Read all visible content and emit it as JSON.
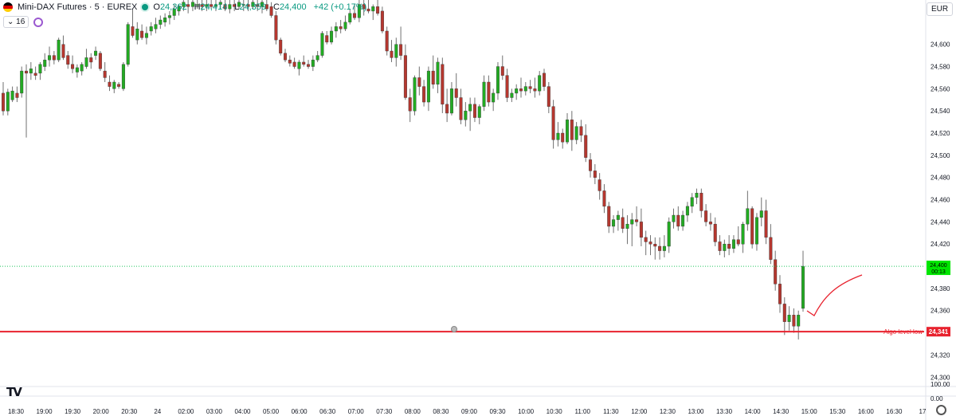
{
  "header": {
    "symbol": "Mini-DAX Futures · 5 · EUREX",
    "ohlc": [
      {
        "label": "O",
        "value": "24,362"
      },
      {
        "label": "H",
        "value": "24,414"
      },
      {
        "label": "L",
        "value": "24,359"
      },
      {
        "label": "C",
        "value": "24,400"
      }
    ],
    "change": "+42 (+0.17%)",
    "interval_label": "16",
    "currency": "EUR"
  },
  "colors": {
    "up": "#22ab22",
    "down": "#b5372f",
    "algo": "#e8222e",
    "price_tag": "#00e600"
  },
  "chart_data": {
    "type": "candlestick",
    "ylim": [
      24293,
      24640
    ],
    "y_ticks": [
      "24,600",
      "24,580",
      "24,560",
      "24,540",
      "24,520",
      "24,500",
      "24,480",
      "24,460",
      "24,440",
      "24,420",
      "24,380",
      "24,360",
      "24,320",
      "24,300"
    ],
    "x_ticks": [
      "18:30",
      "19:00",
      "19:30",
      "20:00",
      "20:30",
      "24",
      "02:00",
      "03:00",
      "04:00",
      "05:00",
      "06:00",
      "06:30",
      "07:00",
      "07:30",
      "08:00",
      "08:30",
      "09:00",
      "09:30",
      "10:00",
      "10:30",
      "11:00",
      "11:30",
      "12:00",
      "12:30",
      "13:00",
      "13:30",
      "14:00",
      "14:30",
      "15:00",
      "15:30",
      "16:00",
      "16:30",
      "17"
    ],
    "candles": [
      [
        24556,
        24566,
        24536,
        24540
      ],
      [
        24540,
        24560,
        24536,
        24557
      ],
      [
        24550,
        24562,
        24548,
        24558
      ],
      [
        24556,
        24562,
        24548,
        24552
      ],
      [
        24556,
        24580,
        24552,
        24576
      ],
      [
        24576,
        24582,
        24516,
        24574
      ],
      [
        24574,
        24584,
        24568,
        24578
      ],
      [
        24574,
        24580,
        24568,
        24572
      ],
      [
        24574,
        24584,
        24568,
        24582
      ],
      [
        24580,
        24592,
        24576,
        24586
      ],
      [
        24586,
        24598,
        24580,
        24590
      ],
      [
        24590,
        24594,
        24582,
        24586
      ],
      [
        24586,
        24606,
        24584,
        24604
      ],
      [
        24600,
        24608,
        24586,
        24588
      ],
      [
        24590,
        24594,
        24578,
        24582
      ],
      [
        24582,
        24590,
        24574,
        24578
      ],
      [
        24575,
        24582,
        24570,
        24579
      ],
      [
        24576,
        24584,
        24572,
        24582
      ],
      [
        24580,
        24596,
        24578,
        24588
      ],
      [
        24588,
        24592,
        24578,
        24584
      ],
      [
        24590,
        24598,
        24586,
        24594
      ],
      [
        24592,
        24594,
        24576,
        24578
      ],
      [
        24576,
        24584,
        24566,
        24570
      ],
      [
        24566,
        24572,
        24558,
        24562
      ],
      [
        24560,
        24568,
        24556,
        24566
      ],
      [
        24564,
        24566,
        24560,
        24562
      ],
      [
        24560,
        24584,
        24558,
        24582
      ],
      [
        24582,
        24620,
        24580,
        24618
      ],
      [
        24616,
        24632,
        24606,
        24608
      ],
      [
        24604,
        24620,
        24600,
        24614
      ],
      [
        24612,
        24618,
        24604,
        24606
      ],
      [
        24606,
        24616,
        24600,
        24610
      ],
      [
        24612,
        24620,
        24608,
        24616
      ],
      [
        24614,
        24624,
        24610,
        24618
      ],
      [
        24618,
        24626,
        24614,
        24622
      ],
      [
        24620,
        24628,
        24616,
        24624
      ],
      [
        24624,
        24630,
        24618,
        24626
      ],
      [
        24626,
        24636,
        24622,
        24632
      ],
      [
        24630,
        24636,
        24626,
        24634
      ],
      [
        24634,
        24640,
        24630,
        24638
      ],
      [
        24636,
        24640,
        24628,
        24634
      ],
      [
        24634,
        24640,
        24630,
        24638
      ],
      [
        24636,
        24640,
        24632,
        24636
      ],
      [
        24636,
        24640,
        24630,
        24634
      ],
      [
        24634,
        24640,
        24630,
        24636
      ],
      [
        24636,
        24640,
        24632,
        24634
      ],
      [
        24634,
        24640,
        24630,
        24636
      ],
      [
        24636,
        24640,
        24632,
        24638
      ],
      [
        24636,
        24640,
        24630,
        24632
      ],
      [
        24632,
        24640,
        24628,
        24636
      ],
      [
        24636,
        24640,
        24630,
        24634
      ],
      [
        24634,
        24640,
        24632,
        24638
      ],
      [
        24636,
        24640,
        24630,
        24636
      ],
      [
        24636,
        24640,
        24630,
        24634
      ],
      [
        24634,
        24640,
        24632,
        24638
      ],
      [
        24636,
        24640,
        24630,
        24634
      ],
      [
        24634,
        24640,
        24628,
        24638
      ],
      [
        24636,
        24640,
        24630,
        24632
      ],
      [
        24634,
        24638,
        24624,
        24626
      ],
      [
        24626,
        24630,
        24600,
        24604
      ],
      [
        24604,
        24606,
        24590,
        24592
      ],
      [
        24592,
        24596,
        24584,
        24586
      ],
      [
        24586,
        24590,
        24580,
        24583
      ],
      [
        24584,
        24588,
        24578,
        24580
      ],
      [
        24578,
        24586,
        24572,
        24584
      ],
      [
        24584,
        24590,
        24580,
        24582
      ],
      [
        24582,
        24586,
        24578,
        24580
      ],
      [
        24580,
        24590,
        24576,
        24586
      ],
      [
        24586,
        24594,
        24584,
        24590
      ],
      [
        24590,
        24612,
        24588,
        24610
      ],
      [
        24608,
        24612,
        24600,
        24602
      ],
      [
        24602,
        24616,
        24600,
        24612
      ],
      [
        24612,
        24620,
        24606,
        24616
      ],
      [
        24616,
        24622,
        24610,
        24614
      ],
      [
        24614,
        24626,
        24612,
        24620
      ],
      [
        24620,
        24632,
        24618,
        24628
      ],
      [
        24628,
        24636,
        24622,
        24624
      ],
      [
        24624,
        24640,
        24620,
        24636
      ],
      [
        24636,
        24640,
        24626,
        24632
      ],
      [
        24632,
        24640,
        24628,
        24630
      ],
      [
        24630,
        24636,
        24622,
        24634
      ],
      [
        24634,
        24640,
        24626,
        24628
      ],
      [
        24630,
        24634,
        24610,
        24612
      ],
      [
        24612,
        24616,
        24590,
        24594
      ],
      [
        24594,
        24604,
        24584,
        24588
      ],
      [
        24588,
        24606,
        24580,
        24600
      ],
      [
        24600,
        24616,
        24586,
        24590
      ],
      [
        24590,
        24600,
        24550,
        24552
      ],
      [
        24552,
        24560,
        24530,
        24540
      ],
      [
        24540,
        24572,
        24536,
        24570
      ],
      [
        24570,
        24580,
        24554,
        24562
      ],
      [
        24562,
        24568,
        24544,
        24548
      ],
      [
        24548,
        24580,
        24540,
        24576
      ],
      [
        24576,
        24590,
        24560,
        24564
      ],
      [
        24564,
        24588,
        24556,
        24584
      ],
      [
        24582,
        24588,
        24538,
        24546
      ],
      [
        24546,
        24560,
        24530,
        24538
      ],
      [
        24538,
        24566,
        24536,
        24560
      ],
      [
        24560,
        24574,
        24544,
        24552
      ],
      [
        24552,
        24560,
        24528,
        24532
      ],
      [
        24532,
        24548,
        24526,
        24540
      ],
      [
        24540,
        24552,
        24522,
        24546
      ],
      [
        24546,
        24552,
        24530,
        24534
      ],
      [
        24534,
        24546,
        24528,
        24544
      ],
      [
        24544,
        24572,
        24540,
        24566
      ],
      [
        24566,
        24572,
        24544,
        24548
      ],
      [
        24548,
        24560,
        24540,
        24556
      ],
      [
        24556,
        24584,
        24550,
        24580
      ],
      [
        24580,
        24590,
        24568,
        24572
      ],
      [
        24572,
        24578,
        24548,
        24552
      ],
      [
        24552,
        24560,
        24548,
        24556
      ],
      [
        24556,
        24564,
        24550,
        24560
      ],
      [
        24560,
        24570,
        24552,
        24558
      ],
      [
        24558,
        24566,
        24554,
        24562
      ],
      [
        24562,
        24568,
        24556,
        24560
      ],
      [
        24560,
        24570,
        24552,
        24558
      ],
      [
        24558,
        24576,
        24554,
        24572
      ],
      [
        24574,
        24578,
        24558,
        24562
      ],
      [
        24562,
        24566,
        24538,
        24544
      ],
      [
        24544,
        24550,
        24506,
        24514
      ],
      [
        24514,
        24530,
        24508,
        24520
      ],
      [
        24520,
        24524,
        24506,
        24512
      ],
      [
        24512,
        24538,
        24510,
        24532
      ],
      [
        24532,
        24540,
        24504,
        24514
      ],
      [
        24514,
        24530,
        24510,
        24526
      ],
      [
        24526,
        24532,
        24512,
        24518
      ],
      [
        24518,
        24528,
        24494,
        24498
      ],
      [
        24496,
        24502,
        24480,
        24486
      ],
      [
        24486,
        24492,
        24474,
        24480
      ],
      [
        24478,
        24484,
        24460,
        24468
      ],
      [
        24468,
        24474,
        24448,
        24454
      ],
      [
        24454,
        24458,
        24430,
        24436
      ],
      [
        24436,
        24446,
        24430,
        24442
      ],
      [
        24442,
        24450,
        24432,
        24446
      ],
      [
        24444,
        24452,
        24430,
        24434
      ],
      [
        24434,
        24446,
        24420,
        24438
      ],
      [
        24438,
        24448,
        24418,
        24442
      ],
      [
        24442,
        24454,
        24436,
        24440
      ],
      [
        24440,
        24452,
        24418,
        24426
      ],
      [
        24426,
        24432,
        24410,
        24422
      ],
      [
        24422,
        24428,
        24410,
        24420
      ],
      [
        24420,
        24426,
        24406,
        24418
      ],
      [
        24418,
        24426,
        24406,
        24414
      ],
      [
        24414,
        24428,
        24408,
        24418
      ],
      [
        24418,
        24444,
        24412,
        24440
      ],
      [
        24440,
        24452,
        24434,
        24446
      ],
      [
        24446,
        24454,
        24432,
        24436
      ],
      [
        24436,
        24450,
        24432,
        24446
      ],
      [
        24446,
        24458,
        24440,
        24454
      ],
      [
        24454,
        24466,
        24448,
        24462
      ],
      [
        24462,
        24470,
        24456,
        24466
      ],
      [
        24466,
        24470,
        24444,
        24450
      ],
      [
        24450,
        24456,
        24436,
        24440
      ],
      [
        24440,
        24448,
        24432,
        24438
      ],
      [
        24438,
        24444,
        24418,
        24422
      ],
      [
        24422,
        24428,
        24410,
        24414
      ],
      [
        24414,
        24424,
        24408,
        24420
      ],
      [
        24420,
        24428,
        24410,
        24416
      ],
      [
        24416,
        24428,
        24412,
        24424
      ],
      [
        24424,
        24436,
        24418,
        24420
      ],
      [
        24420,
        24440,
        24412,
        24438
      ],
      [
        24438,
        24468,
        24432,
        24452
      ],
      [
        24452,
        24454,
        24416,
        24420
      ],
      [
        24420,
        24448,
        24414,
        24444
      ],
      [
        24444,
        24462,
        24436,
        24450
      ],
      [
        24450,
        24460,
        24420,
        24426
      ],
      [
        24426,
        24438,
        24402,
        24406
      ],
      [
        24406,
        24414,
        24378,
        24384
      ],
      [
        24384,
        24392,
        24358,
        24366
      ],
      [
        24366,
        24372,
        24338,
        24350
      ],
      [
        24350,
        24364,
        24342,
        24356
      ],
      [
        24356,
        24362,
        24340,
        24346
      ],
      [
        24346,
        24360,
        24334,
        24356
      ],
      [
        24362,
        24414,
        24359,
        24400
      ]
    ],
    "last_price": {
      "label": "24,400",
      "countdown": "00:13"
    },
    "algo_level": {
      "value": 24341,
      "label": "Algo level low",
      "price_label": "24,341"
    },
    "volume_ticks": [
      "100.00",
      "0.00"
    ]
  }
}
